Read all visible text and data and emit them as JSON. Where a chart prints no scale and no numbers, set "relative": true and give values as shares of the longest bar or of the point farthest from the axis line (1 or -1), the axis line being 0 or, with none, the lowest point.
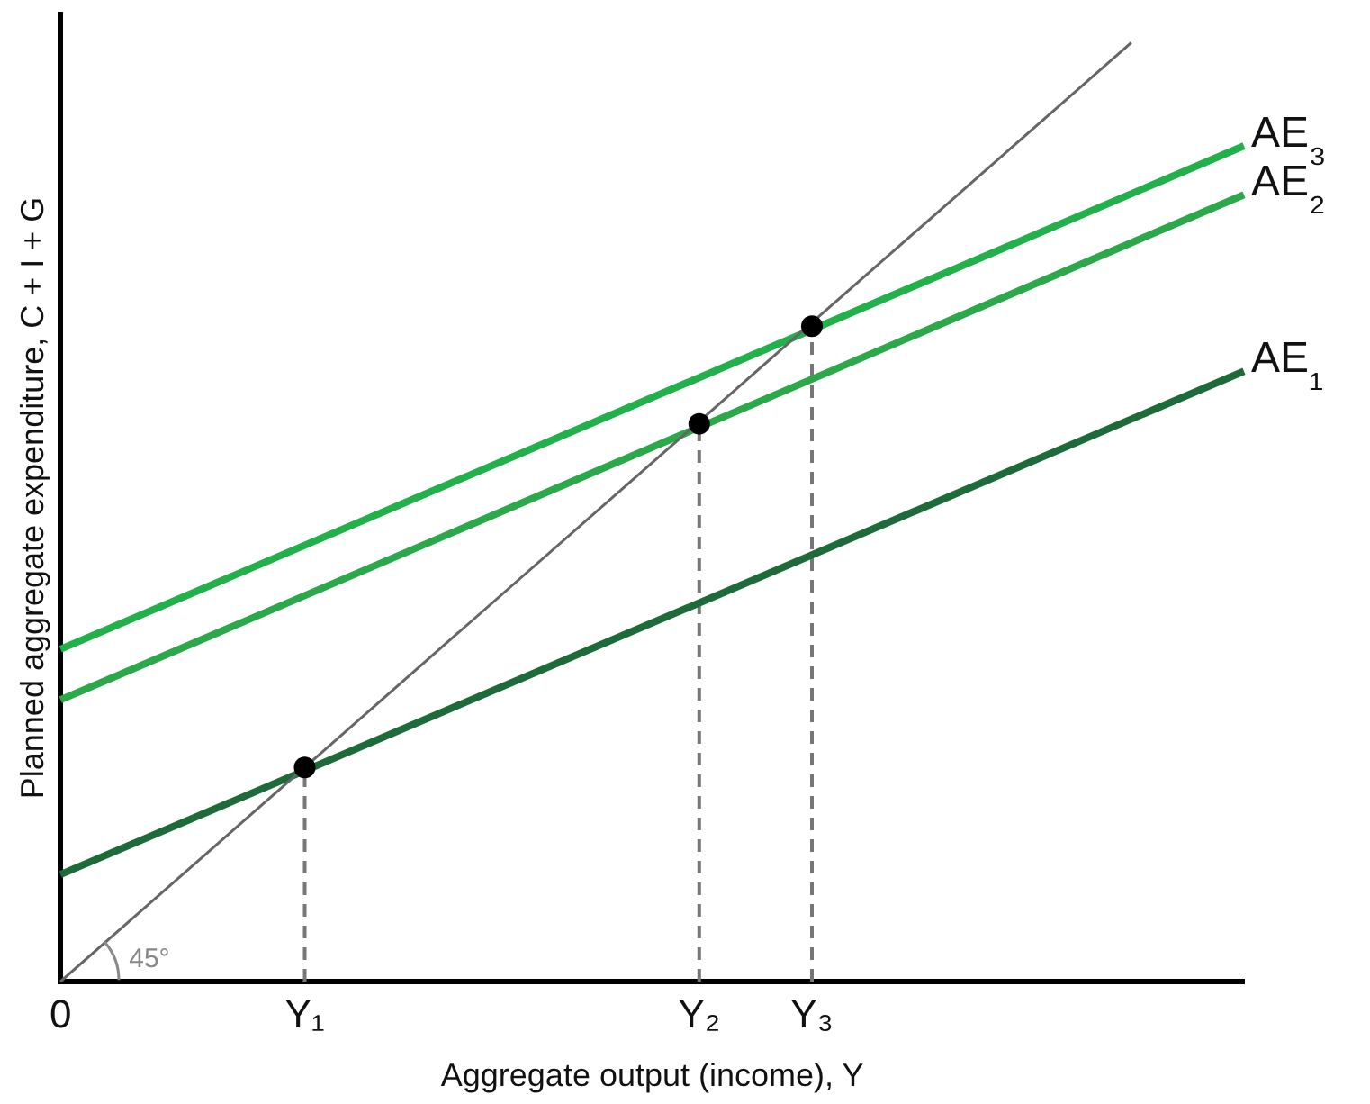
{
  "chart_data": {
    "type": "line",
    "relative": true,
    "xlabel": "Aggregate output (income), Y",
    "ylabel": "Planned aggregate expenditure, C + I + G",
    "categories": [
      "0",
      null,
      null,
      null,
      null,
      null,
      null,
      null,
      null,
      null,
      null,
      null,
      null,
      "Y₁",
      null,
      null,
      null,
      null,
      null,
      null,
      null,
      null,
      null,
      null,
      null,
      null,
      null,
      null,
      null,
      null,
      null,
      null,
      null,
      null,
      "Y₂",
      null,
      null,
      null,
      null,
      null,
      "Y₃",
      null,
      null,
      null,
      null,
      null,
      null,
      null,
      null,
      null,
      null,
      null,
      null,
      null,
      null,
      null,
      null,
      null,
      null,
      null,
      null,
      null,
      null,
      null
    ],
    "grid": false,
    "legend": false,
    "series": [
      {
        "color": "#666666",
        "values": [
          0,
          null,
          null,
          null,
          null,
          null,
          null,
          null,
          null,
          null,
          null,
          null,
          null,
          null,
          null,
          null,
          null,
          null,
          null,
          null,
          null,
          null,
          null,
          null,
          null,
          null,
          null,
          null,
          null,
          null,
          null,
          null,
          null,
          null,
          null,
          null,
          null,
          null,
          null,
          null,
          null,
          null,
          null,
          null,
          null,
          null,
          null,
          null,
          null,
          null,
          null,
          null,
          null,
          null,
          null,
          null,
          null,
          1,
          null,
          null,
          null,
          null,
          null,
          null
        ]
      },
      {
        "name": "AE₁",
        "color": "#1e6b3a",
        "values": [
          0.114,
          null,
          null,
          null,
          null,
          null,
          null,
          null,
          null,
          null,
          null,
          null,
          null,
          null,
          null,
          null,
          null,
          null,
          null,
          null,
          null,
          null,
          null,
          null,
          null,
          null,
          null,
          null,
          null,
          null,
          null,
          null,
          null,
          null,
          null,
          null,
          null,
          null,
          null,
          null,
          null,
          null,
          null,
          null,
          null,
          null,
          null,
          null,
          null,
          null,
          null,
          null,
          null,
          null,
          null,
          null,
          null,
          null,
          null,
          null,
          null,
          null,
          null,
          0.65
        ]
      },
      {
        "name": "AE₂",
        "color": "#2aa84a",
        "values": [
          0.3,
          null,
          null,
          null,
          null,
          null,
          null,
          null,
          null,
          null,
          null,
          null,
          null,
          null,
          null,
          null,
          null,
          null,
          null,
          null,
          null,
          null,
          null,
          null,
          null,
          null,
          null,
          null,
          null,
          null,
          null,
          null,
          null,
          null,
          null,
          null,
          null,
          null,
          null,
          null,
          null,
          null,
          null,
          null,
          null,
          null,
          null,
          null,
          null,
          null,
          null,
          null,
          null,
          null,
          null,
          null,
          null,
          null,
          null,
          null,
          null,
          null,
          null,
          0.838
        ]
      },
      {
        "name": "AE₃",
        "color": "#22b04b",
        "values": [
          0.354,
          null,
          null,
          null,
          null,
          null,
          null,
          null,
          null,
          null,
          null,
          null,
          null,
          null,
          null,
          null,
          null,
          null,
          null,
          null,
          null,
          null,
          null,
          null,
          null,
          null,
          null,
          null,
          null,
          null,
          null,
          null,
          null,
          null,
          null,
          null,
          null,
          null,
          null,
          null,
          null,
          null,
          null,
          null,
          null,
          null,
          null,
          null,
          null,
          null,
          null,
          null,
          null,
          null,
          null,
          null,
          null,
          null,
          null,
          null,
          null,
          null,
          null,
          0.89
        ]
      },
      {
        "type": "scatter",
        "color": "#000000",
        "values": [
          null,
          null,
          null,
          null,
          null,
          null,
          null,
          null,
          null,
          null,
          null,
          null,
          null,
          0.228,
          null,
          null,
          null,
          null,
          null,
          null,
          null,
          null,
          null,
          null,
          null,
          null,
          null,
          null,
          null,
          null,
          null,
          null,
          null,
          null,
          0.594,
          null,
          null,
          null,
          null,
          null,
          0.698,
          null,
          null,
          null,
          null,
          null,
          null,
          null,
          null,
          null,
          null,
          null,
          null,
          null,
          null,
          null,
          null,
          null,
          null,
          null,
          null,
          null,
          null,
          null
        ]
      }
    ],
    "annotations": [
      "45°"
    ]
  }
}
